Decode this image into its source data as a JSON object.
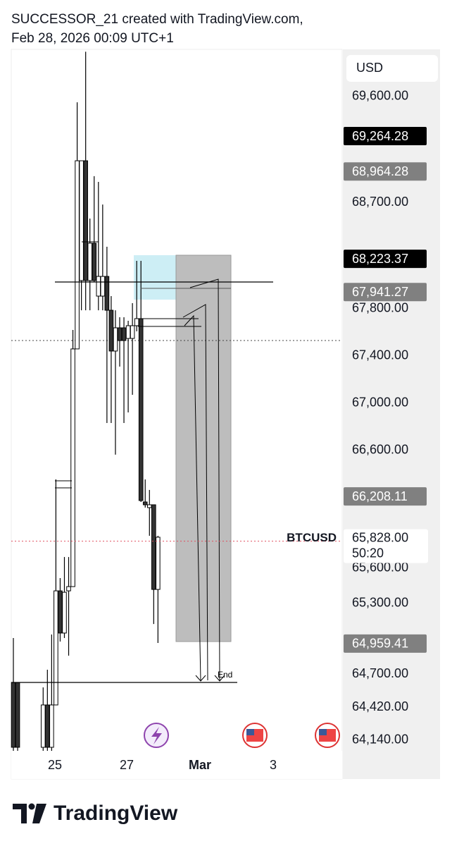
{
  "header": {
    "line1": "SUCCESSOR_21 created with TradingView.com,",
    "line2": "Feb 28, 2026 00:09 UTC+1"
  },
  "chart_data": {
    "type": "candlestick",
    "symbol": "BTCUSD",
    "currency": "USD",
    "open": [
      64630,
      64630,
      null,
      null,
      null,
      null,
      null,
      64080,
      64439,
      64080,
      64439,
      65407,
      65049,
      65407,
      65443,
      67459,
      68039,
      69055,
      68039,
      68356,
      67907,
      67907,
      68074,
      67787,
      67441,
      67638,
      67638,
      67548,
      67548,
      67656,
      67716,
      66161,
      66113,
      66137,
      65419
    ],
    "high": [
      65007,
      64630,
      null,
      null,
      null,
      null,
      null,
      64588,
      64738,
      65037,
      66352,
      65515,
      65694,
      65694,
      67620,
      69551,
      69055,
      69980,
      68565,
      68924,
      68876,
      68684,
      68326,
      67907,
      67787,
      67728,
      67728,
      67698,
      67847,
      68206,
      68206,
      66352,
      66263,
      66137,
      65874
    ],
    "low": [
      64050,
      64050,
      null,
      null,
      null,
      null,
      null,
      64050,
      64050,
      64050,
      64439,
      64977,
      65007,
      64857,
      65443,
      67459,
      67787,
      67787,
      67787,
      68027,
      67787,
      67787,
      66831,
      66831,
      66562,
      67309,
      66831,
      66920,
      67070,
      67608,
      66161,
      66113,
      65874,
      65126,
      64965
    ],
    "close": [
      64080,
      64080,
      null,
      null,
      null,
      null,
      null,
      64439,
      64080,
      64439,
      65407,
      65049,
      65395,
      65443,
      67459,
      69055,
      69055,
      68039,
      68356,
      68039,
      68074,
      68074,
      67787,
      67441,
      67638,
      67530,
      67530,
      67656,
      67656,
      67716,
      66173,
      66137,
      66137,
      65419,
      65862
    ],
    "ylim": [
      64050,
      70000
    ],
    "yticks": [
      {
        "value": 69600,
        "label": "69,600.00"
      },
      {
        "value": 68700,
        "label": "68,700.00"
      },
      {
        "value": 67800,
        "label": "67,800.00"
      },
      {
        "value": 67400,
        "label": "67,400.00"
      },
      {
        "value": 67000,
        "label": "67,000.00"
      },
      {
        "value": 66600,
        "label": "66,600.00"
      },
      {
        "value": 65600,
        "label": "65,600.00"
      },
      {
        "value": 65300,
        "label": "65,300.00"
      },
      {
        "value": 64700,
        "label": "64,700.00"
      },
      {
        "value": 64420,
        "label": "64,420.00"
      },
      {
        "value": 64140,
        "label": "64,140.00"
      }
    ],
    "x_labels": [
      "25",
      "27",
      "Mar",
      "3"
    ],
    "price_labels": [
      {
        "value": 69264.28,
        "label": "69,264.28",
        "color": "#000000"
      },
      {
        "value": 68964.28,
        "label": "68,964.28",
        "color": "#808080"
      },
      {
        "value": 68223.37,
        "label": "68,223.37",
        "color": "#000000"
      },
      {
        "value": 67941.27,
        "label": "67,941.27",
        "color": "#808080"
      },
      {
        "value": 66208.11,
        "label": "66,208.11",
        "color": "#808080"
      },
      {
        "value": 64959.41,
        "label": "64,959.41",
        "color": "#808080"
      }
    ],
    "last_price": {
      "value": 65828,
      "label": "65,828.00",
      "countdown": "50:20"
    },
    "annotation": "End"
  },
  "footer": {
    "brand": "TradingView"
  }
}
